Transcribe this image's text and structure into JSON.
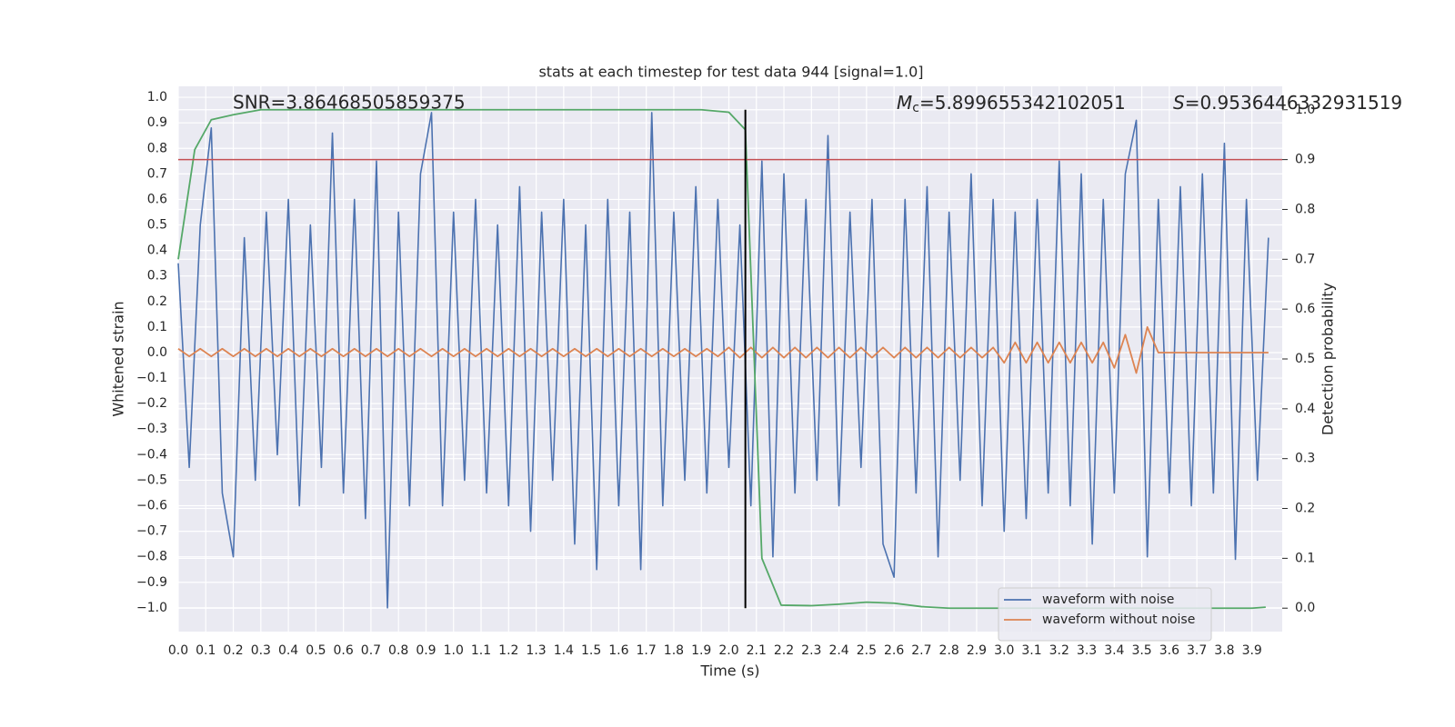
{
  "chart_data": {
    "type": "line",
    "title": "stats at each timestep for test data 944 [signal=1.0]",
    "xlabel": "Time (s)",
    "ylabel": "Whitened strain",
    "y2label": "Detection probability",
    "snr_annotation": "SNR=3.86468505859375",
    "mc_annotation": {
      "symbol": "M",
      "subscript": "c",
      "text": "=5.899655342102051"
    },
    "s_annotation": {
      "symbol": "S",
      "text": "=0.9536446332931519"
    },
    "grid": true,
    "legend": "lower right",
    "xlim": [
      0,
      4.01
    ],
    "ylim": [
      -1.093,
      1.043
    ],
    "y2lim": [
      -0.047,
      1.047
    ],
    "xticks": [
      {
        "value": 0,
        "label": "0.0"
      },
      0.1,
      0.2,
      0.3,
      0.4,
      0.5,
      0.6,
      0.7,
      0.8,
      0.9,
      {
        "value": 1,
        "label": "1.0"
      },
      1.1,
      1.2,
      1.3,
      1.4,
      1.5,
      1.6,
      1.7,
      1.8,
      1.9,
      {
        "value": 2,
        "label": "2.0"
      },
      2.1,
      2.2,
      2.3,
      2.4,
      2.5,
      2.6,
      2.7,
      2.8,
      2.9,
      {
        "value": 3,
        "label": "3.0"
      },
      3.1,
      3.2,
      3.3,
      3.4,
      3.5,
      3.6,
      3.7,
      3.8,
      3.9
    ],
    "yticks": [
      {
        "value": -1,
        "label": "−1.0"
      },
      {
        "value": -0.9,
        "label": "−0.9"
      },
      {
        "value": -0.8,
        "label": "−0.8"
      },
      {
        "value": -0.7,
        "label": "−0.7"
      },
      {
        "value": -0.6,
        "label": "−0.6"
      },
      {
        "value": -0.5,
        "label": "−0.5"
      },
      {
        "value": -0.4,
        "label": "−0.4"
      },
      {
        "value": -0.3,
        "label": "−0.3"
      },
      {
        "value": -0.2,
        "label": "−0.2"
      },
      {
        "value": -0.1,
        "label": "−0.1"
      },
      {
        "value": 0,
        "label": "0.0"
      },
      0.1,
      0.2,
      0.3,
      0.4,
      0.5,
      0.6,
      0.7,
      0.8,
      0.9,
      {
        "value": 1,
        "label": "1.0"
      }
    ],
    "y2ticks": [
      {
        "value": 0,
        "label": "0.0"
      },
      0.1,
      0.2,
      0.3,
      0.4,
      0.5,
      0.6,
      0.7,
      0.8,
      0.9,
      {
        "value": 1,
        "label": "1.0"
      }
    ],
    "x": [
      0,
      0.04,
      0.08,
      0.12,
      0.16,
      0.2,
      0.24,
      0.28,
      0.32,
      0.36,
      0.4,
      0.44,
      0.48,
      0.52,
      0.56,
      0.6,
      0.64,
      0.68,
      0.72,
      0.76,
      0.8,
      0.84,
      0.88,
      0.92,
      0.96,
      1.0,
      1.04,
      1.08,
      1.12,
      1.16,
      1.2,
      1.24,
      1.28,
      1.32,
      1.36,
      1.4,
      1.44,
      1.48,
      1.52,
      1.56,
      1.6,
      1.64,
      1.68,
      1.72,
      1.76,
      1.8,
      1.84,
      1.88,
      1.92,
      1.96,
      2.0,
      2.04,
      2.08,
      2.12,
      2.16,
      2.2,
      2.24,
      2.28,
      2.32,
      2.36,
      2.4,
      2.44,
      2.48,
      2.52,
      2.56,
      2.6,
      2.64,
      2.68,
      2.72,
      2.76,
      2.8,
      2.84,
      2.88,
      2.92,
      2.96,
      3.0,
      3.04,
      3.08,
      3.12,
      3.16,
      3.2,
      3.24,
      3.28,
      3.32,
      3.36,
      3.4,
      3.44,
      3.48,
      3.52,
      3.56,
      3.6,
      3.64,
      3.68,
      3.72,
      3.76,
      3.8,
      3.84,
      3.88,
      3.92,
      3.96
    ],
    "series": [
      {
        "name": "waveform with noise",
        "color": "#4c72b0",
        "legend": true,
        "values": [
          0.35,
          -0.45,
          0.5,
          0.88,
          -0.55,
          -0.8,
          0.45,
          -0.5,
          0.55,
          -0.4,
          0.6,
          -0.6,
          0.5,
          -0.45,
          0.86,
          -0.55,
          0.6,
          -0.65,
          0.75,
          -1.0,
          0.55,
          -0.6,
          0.7,
          0.94,
          -0.6,
          0.55,
          -0.5,
          0.6,
          -0.55,
          0.5,
          -0.6,
          0.65,
          -0.7,
          0.55,
          -0.5,
          0.6,
          -0.75,
          0.5,
          -0.85,
          0.6,
          -0.6,
          0.55,
          -0.85,
          0.94,
          -0.6,
          0.55,
          -0.5,
          0.65,
          -0.55,
          0.6,
          -0.45,
          0.5,
          -0.6,
          0.75,
          -0.8,
          0.7,
          -0.55,
          0.6,
          -0.5,
          0.85,
          -0.6,
          0.55,
          -0.45,
          0.6,
          -0.75,
          -0.88,
          0.6,
          -0.55,
          0.65,
          -0.8,
          0.55,
          -0.5,
          0.7,
          -0.6,
          0.6,
          -0.7,
          0.55,
          -0.65,
          0.6,
          -0.55,
          0.75,
          -0.6,
          0.7,
          -0.75,
          0.6,
          -0.55,
          0.7,
          0.91,
          -0.8,
          0.6,
          -0.55,
          0.65,
          -0.6,
          0.7,
          -0.55,
          0.82,
          -0.81,
          0.6,
          -0.5,
          0.45
        ]
      },
      {
        "name": "waveform without noise",
        "color": "#dd8452",
        "legend": true,
        "values": [
          0.015,
          -0.015,
          0.015,
          -0.015,
          0.015,
          -0.015,
          0.015,
          -0.015,
          0.015,
          -0.015,
          0.015,
          -0.015,
          0.015,
          -0.015,
          0.015,
          -0.015,
          0.015,
          -0.015,
          0.015,
          -0.015,
          0.015,
          -0.015,
          0.015,
          -0.015,
          0.015,
          -0.015,
          0.015,
          -0.015,
          0.015,
          -0.015,
          0.015,
          -0.015,
          0.015,
          -0.015,
          0.015,
          -0.015,
          0.015,
          -0.015,
          0.015,
          -0.015,
          0.015,
          -0.015,
          0.015,
          -0.015,
          0.015,
          -0.015,
          0.015,
          -0.015,
          0.015,
          -0.015,
          0.02,
          -0.02,
          0.02,
          -0.02,
          0.02,
          -0.02,
          0.02,
          -0.02,
          0.02,
          -0.02,
          0.02,
          -0.02,
          0.02,
          -0.02,
          0.02,
          -0.02,
          0.02,
          -0.02,
          0.02,
          -0.02,
          0.02,
          -0.02,
          0.02,
          -0.02,
          0.02,
          -0.04,
          0.04,
          -0.04,
          0.04,
          -0.04,
          0.04,
          -0.04,
          0.04,
          -0.04,
          0.04,
          -0.06,
          0.07,
          -0.08,
          0.1,
          0.0,
          0.0,
          0.0,
          0.0,
          0.0,
          0.0,
          0.0,
          0.0,
          0.0,
          0.0,
          0.0
        ]
      },
      {
        "color": "#55a868",
        "axis": "y2",
        "x": [
          0,
          0.06,
          0.12,
          0.2,
          0.3,
          0.5,
          1.0,
          1.5,
          1.9,
          2.0,
          2.06,
          2.12,
          2.19,
          2.3,
          2.4,
          2.5,
          2.6,
          2.7,
          2.8,
          3.0,
          3.5,
          3.9,
          3.95
        ],
        "values": [
          0.7,
          0.92,
          0.98,
          0.99,
          1.0,
          1.0,
          1.0,
          1.0,
          1.0,
          0.995,
          0.96,
          0.1,
          0.006,
          0.005,
          0.008,
          0.012,
          0.01,
          0.003,
          0.0,
          0.0,
          0.0,
          0.0,
          0.002
        ]
      }
    ],
    "hline": {
      "value": 0.9,
      "axis": "y2",
      "color": "#c44e52"
    },
    "vline": {
      "x": 2.06,
      "y2range": [
        0,
        1
      ],
      "color": "#000000"
    }
  }
}
